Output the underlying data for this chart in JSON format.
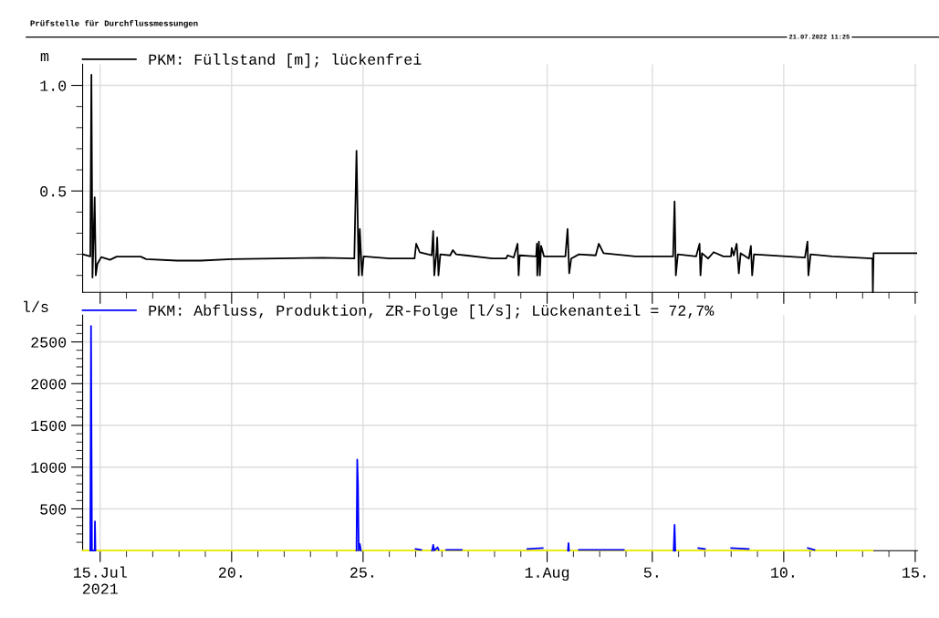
{
  "chart_data": [
    {
      "type": "line",
      "title": "Prüfstelle für Durchflussmessungen",
      "annotations": [
        "21.07.2022 11:25"
      ],
      "ylabel": "m",
      "legend": "top left",
      "grid": true,
      "tick_labels": "y",
      "xlim": [
        "2021-07-14T08:00",
        "2021-08-15T02:00"
      ],
      "xticks": [
        {
          "value": "2021-07-15",
          "label": null
        },
        {
          "value": "2021-07-16",
          "label": null
        },
        {
          "value": "2021-07-17",
          "label": null
        },
        {
          "value": "2021-07-18",
          "label": null
        },
        {
          "value": "2021-07-19",
          "label": null
        },
        {
          "value": "2021-07-20",
          "label": null
        },
        {
          "value": "2021-07-21",
          "label": null
        },
        {
          "value": "2021-07-22",
          "label": null
        },
        {
          "value": "2021-07-23",
          "label": null
        },
        {
          "value": "2021-07-24",
          "label": null
        },
        {
          "value": "2021-07-25",
          "label": null
        },
        {
          "value": "2021-07-26",
          "label": null
        },
        {
          "value": "2021-07-27",
          "label": null
        },
        {
          "value": "2021-07-28",
          "label": null
        },
        {
          "value": "2021-07-29",
          "label": null
        },
        {
          "value": "2021-07-30",
          "label": null
        },
        {
          "value": "2021-07-31",
          "label": null
        },
        {
          "value": "2021-08-01",
          "label": null
        },
        {
          "value": "2021-08-02",
          "label": null
        },
        {
          "value": "2021-08-03",
          "label": null
        },
        {
          "value": "2021-08-04",
          "label": null
        },
        {
          "value": "2021-08-05",
          "label": null
        },
        {
          "value": "2021-08-06",
          "label": null
        },
        {
          "value": "2021-08-07",
          "label": null
        },
        {
          "value": "2021-08-08",
          "label": null
        },
        {
          "value": "2021-08-09",
          "label": null
        },
        {
          "value": "2021-08-10",
          "label": null
        },
        {
          "value": "2021-08-11",
          "label": null
        },
        {
          "value": "2021-08-12",
          "label": null
        },
        {
          "value": "2021-08-13",
          "label": null
        },
        {
          "value": "2021-08-14",
          "label": null
        },
        {
          "value": "2021-08-15",
          "label": null
        }
      ],
      "ylim": [
        0.02,
        1.1
      ],
      "yticks": [
        {
          "value": 0.1,
          "label": null
        },
        {
          "value": 0.2,
          "label": null
        },
        {
          "value": 0.3,
          "label": null
        },
        {
          "value": 0.4,
          "label": null
        },
        {
          "value": 0.5,
          "label": "0.5"
        },
        {
          "value": 0.6,
          "label": null
        },
        {
          "value": 0.7,
          "label": null
        },
        {
          "value": 0.8,
          "label": null
        },
        {
          "value": 0.9,
          "label": null
        },
        {
          "value": 1.0,
          "label": "1.0"
        }
      ],
      "series": [
        {
          "name": "PKM: Füllstand [m]; lückenfrei",
          "color": "#000000",
          "x": [
            "2021-07-14T09:00",
            "2021-07-14T15:00",
            "2021-07-14T16:00",
            "2021-07-14T17:00",
            "2021-07-14T19:00",
            "2021-07-14T20:00",
            "2021-07-14T21:30",
            "2021-07-15T01:00",
            "2021-07-15T09:00",
            "2021-07-15T15:00",
            "2021-07-16T13:00",
            "2021-07-16T18:00",
            "2021-07-17T22:00",
            "2021-07-18T20:00",
            "2021-07-20T00:00",
            "2021-07-23T11:00",
            "2021-07-24T16:00",
            "2021-07-24T18:00",
            "2021-07-24T20:00",
            "2021-07-24T21:00",
            "2021-07-24T23:00",
            "2021-07-25T00:30",
            "2021-07-26T00:00",
            "2021-07-26T23:00",
            "2021-07-27T00:30",
            "2021-07-27T03:40",
            "2021-07-27T14:40",
            "2021-07-27T16:00",
            "2021-07-27T17:00",
            "2021-07-27T19:00",
            "2021-07-27T19:40",
            "2021-07-27T20:50",
            "2021-07-27T22:30",
            "2021-07-28T07:30",
            "2021-07-28T10:00",
            "2021-07-28T13:00",
            "2021-07-29T22:00",
            "2021-07-30T10:30",
            "2021-07-30T12:00",
            "2021-07-30T17:30",
            "2021-07-30T21:00",
            "2021-07-30T22:00",
            "2021-07-30T23:00",
            "2021-07-31T14:00",
            "2021-07-31T14:40",
            "2021-07-31T15:00",
            "2021-07-31T16:30",
            "2021-07-31T17:20",
            "2021-07-31T18:30",
            "2021-07-31T21:10",
            "2021-08-01T16:40",
            "2021-08-01T18:40",
            "2021-08-01T20:10",
            "2021-08-01T22:00",
            "2021-08-02T05:00",
            "2021-08-02T20:20",
            "2021-08-02T23:10",
            "2021-08-03T03:30",
            "2021-08-04T08:20",
            "2021-08-05T19:00",
            "2021-08-05T20:20",
            "2021-08-05T21:30",
            "2021-08-05T23:20",
            "2021-08-06T16:00",
            "2021-08-06T19:10",
            "2021-08-06T20:00",
            "2021-08-06T21:20",
            "2021-08-07T03:00",
            "2021-08-07T08:00",
            "2021-08-07T16:50",
            "2021-08-07T23:50",
            "2021-08-08T00:30",
            "2021-08-08T02:20",
            "2021-08-08T05:00",
            "2021-08-08T07:00",
            "2021-08-08T08:40",
            "2021-08-08T16:10",
            "2021-08-08T18:00",
            "2021-08-08T19:10",
            "2021-08-08T20:50",
            "2021-08-10T02:40",
            "2021-08-10T19:20",
            "2021-08-10T21:40",
            "2021-08-10T22:30",
            "2021-08-11T00:30",
            "2021-08-11T20:20",
            "2021-08-13T09:00",
            "2021-08-13T09:20",
            "2021-08-13T10:00",
            "2021-08-13T13:40",
            "2021-08-15T01:00"
          ],
          "values": [
            0.199,
            0.19,
            1.05,
            0.09,
            0.47,
            0.1,
            0.155,
            0.187,
            0.174,
            0.189,
            0.189,
            0.177,
            0.17,
            0.17,
            0.177,
            0.184,
            0.18,
            0.69,
            0.1,
            0.32,
            0.1,
            0.19,
            0.18,
            0.18,
            0.25,
            0.21,
            0.195,
            0.31,
            0.1,
            0.21,
            0.28,
            0.1,
            0.2,
            0.195,
            0.22,
            0.2,
            0.18,
            0.18,
            0.195,
            0.185,
            0.25,
            0.1,
            0.195,
            0.19,
            0.25,
            0.1,
            0.26,
            0.1,
            0.24,
            0.19,
            0.19,
            0.32,
            0.11,
            0.18,
            0.2,
            0.195,
            0.25,
            0.205,
            0.19,
            0.19,
            0.45,
            0.1,
            0.2,
            0.19,
            0.25,
            0.1,
            0.205,
            0.18,
            0.21,
            0.19,
            0.19,
            0.23,
            0.195,
            0.25,
            0.11,
            0.205,
            0.18,
            0.24,
            0.1,
            0.2,
            0.19,
            0.185,
            0.26,
            0.1,
            0.2,
            0.19,
            0.18,
            0.02,
            0.205,
            0.205,
            0.205
          ]
        }
      ]
    },
    {
      "type": "line",
      "ylabel": "l/s",
      "legend": "top left",
      "grid": true,
      "xlim": [
        "2021-07-14T08:00",
        "2021-08-15T02:00"
      ],
      "xticks": [
        {
          "value": "2021-07-15",
          "label": "15.Jul\n2021"
        },
        {
          "value": "2021-07-16",
          "label": null
        },
        {
          "value": "2021-07-17",
          "label": null
        },
        {
          "value": "2021-07-18",
          "label": null
        },
        {
          "value": "2021-07-19",
          "label": null
        },
        {
          "value": "2021-07-20",
          "label": "20."
        },
        {
          "value": "2021-07-21",
          "label": null
        },
        {
          "value": "2021-07-22",
          "label": null
        },
        {
          "value": "2021-07-23",
          "label": null
        },
        {
          "value": "2021-07-24",
          "label": null
        },
        {
          "value": "2021-07-25",
          "label": "25."
        },
        {
          "value": "2021-07-26",
          "label": null
        },
        {
          "value": "2021-07-27",
          "label": null
        },
        {
          "value": "2021-07-28",
          "label": null
        },
        {
          "value": "2021-07-29",
          "label": null
        },
        {
          "value": "2021-07-30",
          "label": null
        },
        {
          "value": "2021-07-31",
          "label": null
        },
        {
          "value": "2021-08-01",
          "label": "1.Aug"
        },
        {
          "value": "2021-08-02",
          "label": null
        },
        {
          "value": "2021-08-03",
          "label": null
        },
        {
          "value": "2021-08-04",
          "label": null
        },
        {
          "value": "2021-08-05",
          "label": "5."
        },
        {
          "value": "2021-08-06",
          "label": null
        },
        {
          "value": "2021-08-07",
          "label": null
        },
        {
          "value": "2021-08-08",
          "label": null
        },
        {
          "value": "2021-08-09",
          "label": null
        },
        {
          "value": "2021-08-10",
          "label": "10."
        },
        {
          "value": "2021-08-11",
          "label": null
        },
        {
          "value": "2021-08-12",
          "label": null
        },
        {
          "value": "2021-08-13",
          "label": null
        },
        {
          "value": "2021-08-14",
          "label": null
        },
        {
          "value": "2021-08-15",
          "label": "15."
        }
      ],
      "ylim": [
        0,
        2820
      ],
      "yticks": [
        {
          "value": 100,
          "label": null
        },
        {
          "value": 200,
          "label": null
        },
        {
          "value": 300,
          "label": null
        },
        {
          "value": 400,
          "label": null
        },
        500,
        {
          "value": 600,
          "label": null
        },
        {
          "value": 700,
          "label": null
        },
        {
          "value": 800,
          "label": null
        },
        {
          "value": 900,
          "label": null
        },
        1000,
        {
          "value": 1100,
          "label": null
        },
        {
          "value": 1200,
          "label": null
        },
        {
          "value": 1300,
          "label": null
        },
        {
          "value": 1400,
          "label": null
        },
        1500,
        {
          "value": 1600,
          "label": null
        },
        {
          "value": 1700,
          "label": null
        },
        {
          "value": 1800,
          "label": null
        },
        {
          "value": 1900,
          "label": null
        },
        2000,
        {
          "value": 2100,
          "label": null
        },
        {
          "value": 2200,
          "label": null
        },
        {
          "value": 2300,
          "label": null
        },
        {
          "value": 2400,
          "label": null
        },
        2500,
        {
          "value": 2600,
          "label": null
        },
        {
          "value": 2700,
          "label": null
        }
      ],
      "series": [
        {
          "color": "#f0f000",
          "x": [
            "2021-07-14T08:00",
            "2021-08-13T09:00"
          ],
          "values": [
            0,
            0
          ]
        },
        {
          "name": "PKM: Abfluss, Produktion, ZR-Folge [l/s]; Lückenanteil = 72,7%",
          "color": "#0000ff",
          "x": [
            "2021-07-14T15:00",
            "2021-07-14T15:40",
            "2021-07-14T16:10",
            "2021-07-14T16:30",
            "2021-07-14T19:00",
            "2021-07-14T19:15",
            "2021-07-14T19:40",
            "2021-07-14T20:00",
            "2021-07-24T18:00",
            "2021-07-24T18:40",
            "2021-07-24T19:20",
            "2021-07-24T20:00",
            "2021-07-24T21:00",
            "2021-07-24T22:00",
            "2021-07-25T00:00",
            "2021-07-27T00:00",
            "2021-07-27T05:00",
            "2021-07-27T10:00",
            "2021-07-27T15:00",
            "2021-07-27T16:00",
            "2021-07-27T17:00",
            "2021-07-27T20:00",
            "2021-07-27T21:00",
            "2021-07-28T00:00",
            "2021-07-28T04:00",
            "2021-07-28T18:00",
            "2021-07-29T00:00",
            "2021-07-31T06:00",
            "2021-07-31T20:00",
            "2021-08-01T00:00",
            "2021-08-01T19:00",
            "2021-08-01T19:30",
            "2021-08-01T20:00",
            "2021-08-02T00:00",
            "2021-08-02T05:00",
            "2021-08-03T22:00",
            "2021-08-04T00:00",
            "2021-08-05T19:30",
            "2021-08-05T20:20",
            "2021-08-05T21:00",
            "2021-08-06T00:00",
            "2021-08-06T18:00",
            "2021-08-07T00:00",
            "2021-08-07T12:00",
            "2021-08-08T00:00",
            "2021-08-08T16:00",
            "2021-08-09T00:00",
            "2021-08-10T22:00",
            "2021-08-11T04:00"
          ],
          "values": [
            0,
            2690,
            1100,
            0,
            0,
            350,
            0,
            null,
            0,
            1090,
            800,
            0,
            80,
            0,
            null,
            20,
            10,
            null,
            0,
            70,
            0,
            40,
            10,
            null,
            10,
            10,
            null,
            20,
            30,
            null,
            0,
            90,
            0,
            null,
            10,
            10,
            null,
            0,
            310,
            0,
            null,
            30,
            20,
            null,
            30,
            20,
            null,
            30,
            10
          ]
        }
      ]
    }
  ]
}
